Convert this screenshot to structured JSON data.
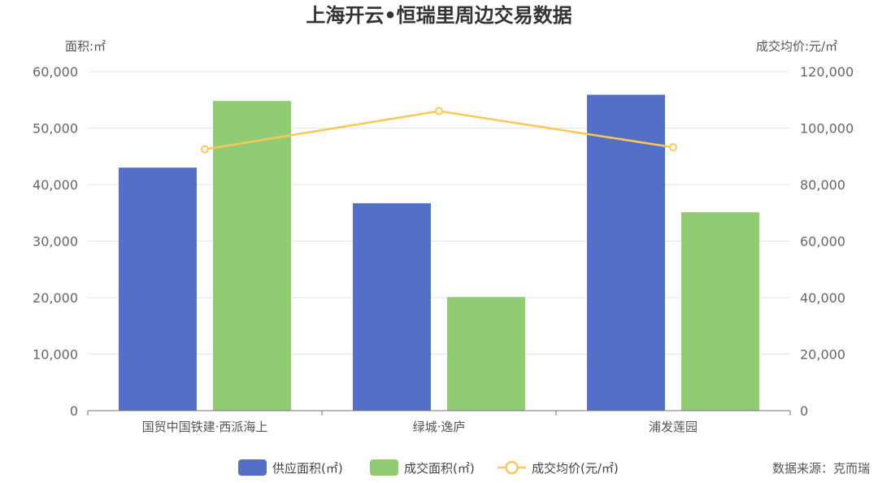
{
  "chart_data": {
    "type": "bar",
    "title": "上海开云•恒瑞里周边交易数据",
    "left_axis_label": "面积:㎡",
    "right_axis_label": "成交均价:元/㎡",
    "categories": [
      "国贸中国铁建·西派海上",
      "绿城·逸庐",
      "浦发莲园"
    ],
    "series": [
      {
        "name": "供应面积(㎡)",
        "type": "bar",
        "axis": "left",
        "color": "#5470c6",
        "values": [
          43000,
          36700,
          55900
        ]
      },
      {
        "name": "成交面积(㎡)",
        "type": "bar",
        "axis": "left",
        "color": "#91cc75",
        "values": [
          54800,
          20100,
          35100
        ]
      },
      {
        "name": "成交均价(元/㎡)",
        "type": "line",
        "axis": "right",
        "color": "#fac858",
        "values": [
          92500,
          106000,
          93200
        ]
      }
    ],
    "left_axis": {
      "min": 0,
      "max": 60000,
      "ticks": [
        "0",
        "10,000",
        "20,000",
        "30,000",
        "40,000",
        "50,000",
        "60,000"
      ]
    },
    "right_axis": {
      "min": 0,
      "max": 120000,
      "ticks": [
        "0",
        "20,000",
        "40,000",
        "60,000",
        "80,000",
        "100,000",
        "120,000"
      ]
    },
    "grid": true,
    "legend_position": "bottom"
  },
  "source": "数据来源：克而瑞"
}
